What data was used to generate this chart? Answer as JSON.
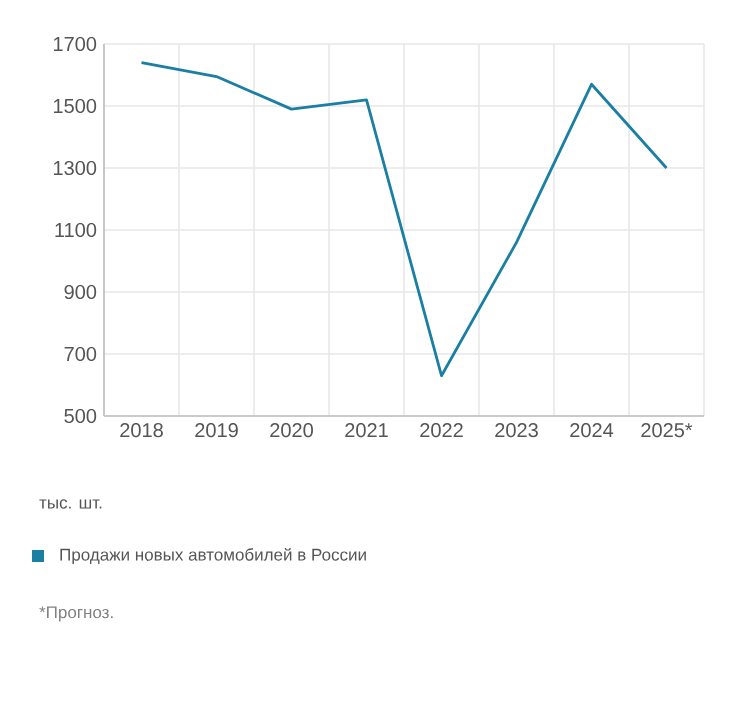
{
  "chart_data": {
    "type": "line",
    "categories": [
      "2018",
      "2019",
      "2020",
      "2021",
      "2022",
      "2023",
      "2024",
      "2025*"
    ],
    "series": [
      {
        "name": "Продажи новых автомобилей в России",
        "color": "#1a7fa3",
        "values": [
          1640,
          1595,
          1490,
          1520,
          630,
          1060,
          1570,
          1300
        ]
      }
    ],
    "ylim": [
      500,
      1700
    ],
    "yticks": [
      500,
      700,
      900,
      1100,
      1300,
      1500,
      1700
    ],
    "grid": true,
    "legend": "bottom",
    "annotations": [
      "тыс. шт.",
      "*Прогноз."
    ]
  }
}
